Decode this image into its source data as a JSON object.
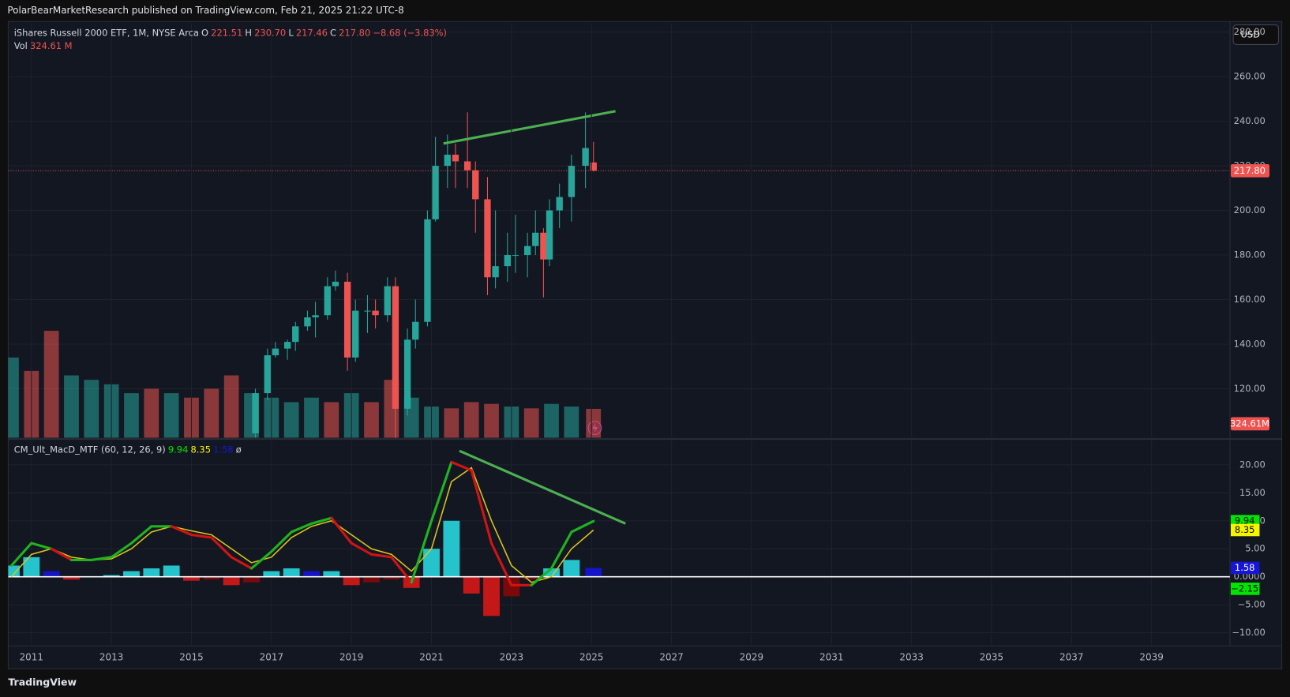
{
  "header": {
    "publisher": "PolarBearMarketResearch published on TradingView.com, Feb 21, 2025 21:22 UTC-8"
  },
  "footer": {
    "brand": "TradingView"
  },
  "currency_button": "USD",
  "legend": {
    "symbol": "iShares Russell 2000 ETF, 1M, NYSE Arca",
    "items": [
      {
        "key": "O",
        "value": "221.51"
      },
      {
        "key": "H",
        "value": "230.70"
      },
      {
        "key": "L",
        "value": "217.46"
      },
      {
        "key": "C",
        "value": "217.80"
      }
    ],
    "change": "−8.68 (−3.83%)",
    "vol_key": "Vol",
    "vol_value": "324.61 M"
  },
  "indicator_legend": {
    "name": "CM_Ult_MacD_MTF (60, 12, 26, 9)",
    "macd": "9.94",
    "signal": "8.35",
    "hist": "1.58",
    "extra": "ø"
  },
  "chart_data": [
    {
      "type": "candlestick",
      "name": "price",
      "x": [
        2016.6,
        2016.9,
        2017.1,
        2017.4,
        2017.6,
        2017.9,
        2018.1,
        2018.4,
        2018.6,
        2018.9,
        2019.1,
        2019.4,
        2019.6,
        2019.9,
        2020.1,
        2020.4,
        2020.6,
        2020.9,
        2021.1,
        2021.4,
        2021.6,
        2021.9,
        2022.1,
        2022.4,
        2022.6,
        2022.9,
        2023.1,
        2023.4,
        2023.6,
        2023.8,
        2023.95,
        2024.2,
        2024.5,
        2024.85,
        2025.05
      ],
      "open": [
        100,
        118,
        135,
        138,
        141,
        148,
        152,
        153,
        166,
        168,
        134,
        155,
        155,
        153,
        166,
        111,
        142,
        150,
        196,
        220,
        225,
        222,
        218,
        205,
        170,
        175,
        180,
        180,
        184,
        190,
        178,
        200,
        206,
        220,
        221.51
      ],
      "high": [
        120,
        138,
        141,
        142,
        150,
        155,
        159,
        170,
        173,
        172,
        160,
        162,
        160,
        170,
        170,
        147,
        160,
        200,
        233,
        234,
        230,
        244,
        222,
        215,
        200,
        190,
        198,
        190,
        200,
        192,
        205,
        212,
        225,
        244,
        230.7
      ],
      "low": [
        98,
        115,
        134,
        133,
        137,
        146,
        143,
        151,
        164,
        128,
        132,
        145,
        147,
        150,
        95,
        108,
        138,
        148,
        195,
        210,
        210,
        210,
        190,
        162,
        165,
        168,
        172,
        170,
        180,
        161,
        175,
        192,
        195,
        210,
        217.46
      ],
      "close": [
        118,
        135,
        138,
        141,
        148,
        152,
        153,
        166,
        168,
        134,
        155,
        155,
        153,
        166,
        111,
        142,
        150,
        196,
        220,
        225,
        222,
        218,
        205,
        170,
        175,
        180,
        180,
        184,
        190,
        178,
        200,
        206,
        220,
        228,
        217.8
      ],
      "up_color": "#26a69a",
      "down_color": "#ef5350",
      "last_price_label": "217.80",
      "xlim": [
        2010.42,
        2040.96
      ],
      "ylim": [
        98,
        284
      ],
      "yticks": [
        {
          "value": 120,
          "label": "120.00"
        },
        {
          "value": 140,
          "label": "140.00"
        },
        {
          "value": 160,
          "label": "160.00"
        },
        {
          "value": 180,
          "label": "180.00"
        },
        {
          "value": 200,
          "label": "200.00"
        },
        {
          "value": 220,
          "label": "220.00"
        },
        {
          "value": 240,
          "label": "240.00"
        },
        {
          "value": 260,
          "label": "260.00"
        },
        {
          "value": 280,
          "label": "280.00"
        }
      ],
      "grid": true,
      "trendline": {
        "x": [
          2021.3,
          2025.6
        ],
        "y": [
          230,
          244.5
        ],
        "color": "#4caf50"
      },
      "volume": {
        "x": [
          2010.5,
          2011,
          2011.5,
          2012,
          2012.5,
          2013,
          2013.5,
          2014,
          2014.5,
          2015,
          2015.5,
          2016,
          2016.5,
          2017,
          2017.5,
          2018,
          2018.5,
          2019,
          2019.5,
          2020,
          2020.5,
          2021,
          2021.5,
          2022,
          2022.5,
          2023,
          2023.5,
          2024,
          2024.5,
          2025.05
        ],
        "values": [
          900,
          750,
          1200,
          700,
          650,
          600,
          500,
          550,
          500,
          450,
          550,
          700,
          500,
          450,
          400,
          450,
          400,
          500,
          400,
          650,
          450,
          350,
          330,
          400,
          380,
          350,
          330,
          380,
          350,
          324.61
        ],
        "value_labels": [
          null,
          null,
          null,
          null,
          null,
          null,
          null,
          null,
          null,
          null,
          null,
          null,
          null,
          null,
          null,
          null,
          null,
          null,
          null,
          null,
          null,
          null,
          null,
          null,
          null,
          null,
          null,
          null,
          null,
          "324.61M"
        ],
        "colors": [
          "#26a69a",
          "#ef5350",
          "#ef5350",
          "#26a69a",
          "#26a69a",
          "#26a69a",
          "#26a69a",
          "#ef5350",
          "#26a69a",
          "#ef5350",
          "#ef5350",
          "#ef5350",
          "#26a69a",
          "#26a69a",
          "#26a69a",
          "#26a69a",
          "#ef5350",
          "#26a69a",
          "#ef5350",
          "#ef5350",
          "#26a69a",
          "#26a69a",
          "#ef5350",
          "#ef5350",
          "#ef5350",
          "#26a69a",
          "#ef5350",
          "#26a69a",
          "#26a69a",
          "#ef5350"
        ]
      }
    },
    {
      "type": "macd",
      "name": "CM_Ult_MacD_MTF",
      "x": [
        2010.5,
        2011,
        2011.5,
        2012,
        2012.5,
        2013,
        2013.5,
        2014,
        2014.5,
        2015,
        2015.5,
        2016,
        2016.5,
        2017,
        2017.5,
        2018,
        2018.5,
        2019,
        2019.5,
        2020,
        2020.5,
        2021,
        2021.5,
        2022,
        2022.5,
        2023,
        2023.5,
        2024,
        2024.5,
        2025.05
      ],
      "macd": [
        2,
        6,
        5,
        3,
        3,
        3.5,
        6,
        9,
        9,
        7.5,
        7,
        3.5,
        1.5,
        4.5,
        8,
        9.5,
        10.5,
        6,
        4,
        3.5,
        -1,
        10,
        20.5,
        19,
        6,
        -1.5,
        -1.5,
        1.5,
        8,
        9.94
      ],
      "signal": [
        0,
        4,
        5,
        3.5,
        3,
        3.2,
        5,
        8,
        9,
        8.2,
        7.5,
        5,
        2.5,
        3.5,
        7,
        9,
        10,
        7.5,
        5,
        4,
        1,
        5,
        17,
        19.5,
        10,
        2,
        -1,
        0,
        5,
        8.35
      ],
      "hist": [
        2,
        3.5,
        1,
        -0.5,
        0,
        0.3,
        1,
        1.5,
        2,
        -0.7,
        -0.5,
        -1.5,
        -1,
        1,
        1.5,
        1,
        1,
        -1.5,
        -1,
        -0.5,
        -2,
        5,
        10,
        -3,
        -7,
        -3.5,
        -0.5,
        1.5,
        3,
        1.58
      ],
      "macd_colors": {
        "above": "#1fb31f",
        "below": "#d01414"
      },
      "signal_color": "#d8c41e",
      "hist_colors": {
        "pos_up": "#25c4cc",
        "pos_down": "#1414c8",
        "neg_down": "#c41818",
        "neg_up": "#7a0a0a"
      },
      "labels": [
        {
          "value": 9.94,
          "label": "9.94",
          "color": "#00e600"
        },
        {
          "value": 8.35,
          "label": "8.35",
          "color": "#f5f500"
        },
        {
          "value": 1.58,
          "label": "1.58",
          "color": "#1616d8"
        },
        {
          "value": -2.15,
          "label": "−2.15",
          "color": "#00e600"
        }
      ],
      "xlim": [
        2010.42,
        2040.96
      ],
      "ylim": [
        -12.35,
        24.4
      ],
      "yticks": [
        {
          "value": -10,
          "label": "−10.00"
        },
        {
          "value": -5,
          "label": "−5.00"
        },
        {
          "value": 0,
          "label": "0.0000"
        },
        {
          "value": 5,
          "label": "5.00"
        },
        {
          "value": 10,
          "label": "10.00"
        },
        {
          "value": 15,
          "label": "15.00"
        },
        {
          "value": 20,
          "label": "20.00"
        }
      ],
      "xticks": [
        2011,
        2013,
        2015,
        2017,
        2019,
        2021,
        2023,
        2025,
        2027,
        2029,
        2031,
        2033,
        2035,
        2037,
        2039
      ],
      "grid": true,
      "trendline": {
        "x": [
          2021.7,
          2025.85
        ],
        "y": [
          22.5,
          9.5
        ],
        "color": "#4caf50"
      }
    }
  ]
}
